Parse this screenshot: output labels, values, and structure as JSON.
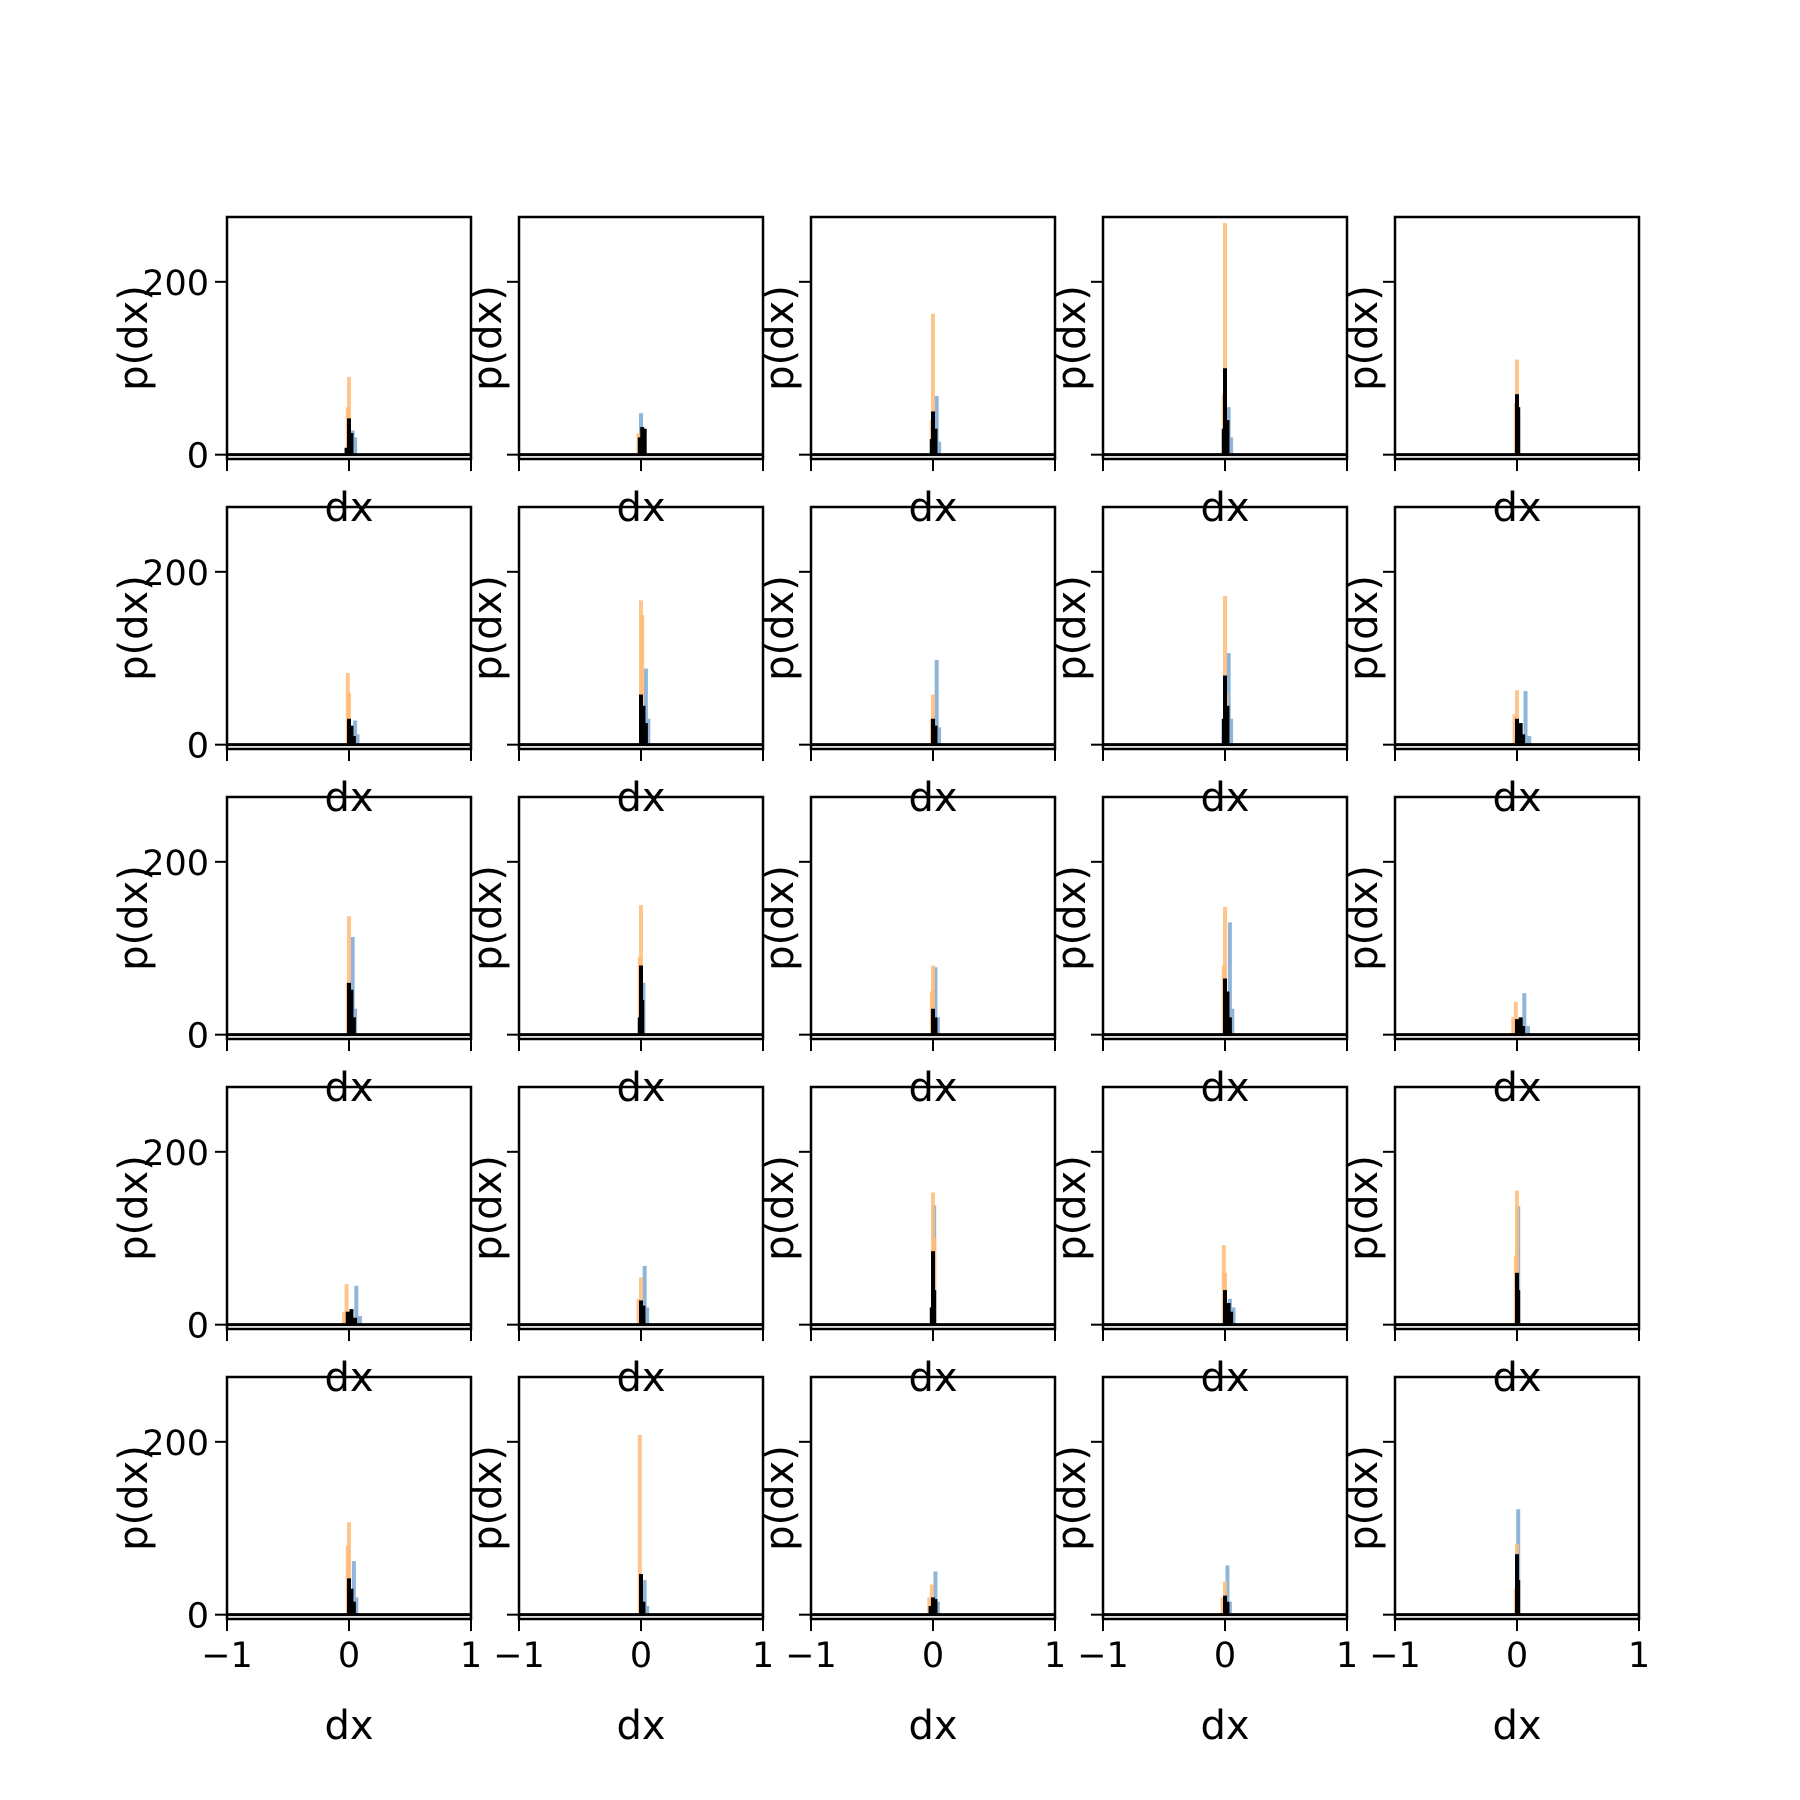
{
  "colors": {
    "orange": "#ffbb78",
    "blue": "#8fb5d8",
    "black": "#000000"
  },
  "chart_data": {
    "type": "bar",
    "layout": "grid 5x5, shared axes",
    "xlabel": "dx",
    "ylabel": "p(dx)",
    "xlim": [
      -1,
      1
    ],
    "ylim": [
      -5,
      275
    ],
    "xticks": [
      -1,
      0,
      1
    ],
    "xtick_labels": [
      "−1",
      "0",
      "1"
    ],
    "yticks": [
      0,
      200
    ],
    "ytick_labels": [
      "0",
      "200"
    ],
    "series_colors": [
      "orange",
      "blue",
      "black"
    ],
    "panels": [
      {
        "orange": [
          [
            0.0,
            90
          ],
          [
            -0.01,
            55
          ]
        ],
        "blue": [
          [
            0.03,
            28
          ],
          [
            0.05,
            20
          ]
        ],
        "black": [
          [
            0.0,
            42
          ],
          [
            0.02,
            25
          ],
          [
            -0.02,
            8
          ]
        ]
      },
      {
        "orange": [
          [
            -0.02,
            25
          ],
          [
            0.0,
            15
          ]
        ],
        "blue": [
          [
            0.0,
            48
          ],
          [
            0.03,
            30
          ]
        ],
        "black": [
          [
            -0.01,
            20
          ],
          [
            0.01,
            32
          ],
          [
            0.03,
            30
          ]
        ]
      },
      {
        "orange": [
          [
            0.0,
            163
          ],
          [
            -0.01,
            40
          ]
        ],
        "blue": [
          [
            0.03,
            68
          ],
          [
            0.05,
            15
          ]
        ],
        "black": [
          [
            0.0,
            50
          ],
          [
            0.02,
            30
          ],
          [
            -0.01,
            18
          ]
        ]
      },
      {
        "orange": [
          [
            0.0,
            268
          ],
          [
            -0.01,
            70
          ]
        ],
        "blue": [
          [
            0.03,
            55
          ],
          [
            0.05,
            20
          ]
        ],
        "black": [
          [
            0.0,
            100
          ],
          [
            0.02,
            40
          ],
          [
            -0.01,
            30
          ]
        ]
      },
      {
        "orange": [
          [
            0.0,
            110
          ],
          [
            -0.01,
            60
          ]
        ],
        "blue": [
          [
            0.01,
            48
          ]
        ],
        "black": [
          [
            0.0,
            70
          ],
          [
            0.01,
            55
          ]
        ]
      },
      {
        "orange": [
          [
            -0.01,
            83
          ],
          [
            0.0,
            60
          ]
        ],
        "blue": [
          [
            0.05,
            28
          ],
          [
            0.07,
            12
          ]
        ],
        "black": [
          [
            0.0,
            30
          ],
          [
            0.02,
            22
          ],
          [
            0.04,
            10
          ]
        ]
      },
      {
        "orange": [
          [
            0.0,
            167
          ],
          [
            0.01,
            150
          ]
        ],
        "blue": [
          [
            0.04,
            88
          ],
          [
            0.06,
            30
          ]
        ],
        "black": [
          [
            0.0,
            58
          ],
          [
            0.02,
            45
          ],
          [
            0.04,
            25
          ]
        ]
      },
      {
        "orange": [
          [
            0.0,
            58
          ],
          [
            -0.01,
            30
          ]
        ],
        "blue": [
          [
            0.03,
            98
          ],
          [
            0.05,
            20
          ]
        ],
        "black": [
          [
            0.0,
            30
          ],
          [
            0.02,
            22
          ]
        ]
      },
      {
        "orange": [
          [
            0.0,
            172
          ],
          [
            0.01,
            60
          ]
        ],
        "blue": [
          [
            0.03,
            106
          ],
          [
            0.05,
            30
          ]
        ],
        "black": [
          [
            0.0,
            80
          ],
          [
            0.02,
            45
          ],
          [
            -0.01,
            30
          ]
        ]
      },
      {
        "orange": [
          [
            0.0,
            63
          ],
          [
            -0.02,
            35
          ]
        ],
        "blue": [
          [
            0.07,
            62
          ],
          [
            0.1,
            10
          ]
        ],
        "black": [
          [
            0.0,
            30
          ],
          [
            0.03,
            25
          ],
          [
            0.05,
            12
          ]
        ]
      },
      {
        "orange": [
          [
            0.0,
            137
          ],
          [
            -0.01,
            60
          ]
        ],
        "blue": [
          [
            0.03,
            113
          ],
          [
            0.05,
            30
          ]
        ],
        "black": [
          [
            0.0,
            60
          ],
          [
            0.02,
            52
          ],
          [
            0.04,
            20
          ]
        ]
      },
      {
        "orange": [
          [
            0.0,
            150
          ],
          [
            -0.01,
            90
          ]
        ],
        "blue": [
          [
            0.02,
            60
          ]
        ],
        "black": [
          [
            0.0,
            80
          ],
          [
            0.01,
            40
          ],
          [
            -0.01,
            20
          ]
        ]
      },
      {
        "orange": [
          [
            0.0,
            80
          ],
          [
            -0.01,
            50
          ]
        ],
        "blue": [
          [
            0.02,
            78
          ],
          [
            0.04,
            20
          ]
        ],
        "black": [
          [
            0.0,
            30
          ],
          [
            0.02,
            20
          ]
        ]
      },
      {
        "orange": [
          [
            0.0,
            148
          ],
          [
            -0.01,
            80
          ]
        ],
        "blue": [
          [
            0.04,
            130
          ],
          [
            0.06,
            30
          ]
        ],
        "black": [
          [
            0.0,
            65
          ],
          [
            0.02,
            50
          ],
          [
            0.04,
            20
          ]
        ]
      },
      {
        "orange": [
          [
            -0.01,
            38
          ],
          [
            -0.03,
            20
          ]
        ],
        "blue": [
          [
            0.06,
            48
          ],
          [
            0.09,
            10
          ]
        ],
        "black": [
          [
            0.0,
            18
          ],
          [
            0.03,
            20
          ],
          [
            0.05,
            10
          ]
        ]
      },
      {
        "orange": [
          [
            -0.02,
            47
          ],
          [
            -0.04,
            15
          ]
        ],
        "blue": [
          [
            0.06,
            45
          ],
          [
            0.09,
            10
          ]
        ],
        "black": [
          [
            -0.01,
            15
          ],
          [
            0.02,
            18
          ],
          [
            0.05,
            8
          ]
        ]
      },
      {
        "orange": [
          [
            0.0,
            55
          ],
          [
            -0.02,
            30
          ]
        ],
        "blue": [
          [
            0.03,
            68
          ],
          [
            0.05,
            20
          ]
        ],
        "black": [
          [
            0.0,
            28
          ],
          [
            0.02,
            22
          ]
        ]
      },
      {
        "orange": [
          [
            0.0,
            153
          ],
          [
            0.01,
            100
          ]
        ],
        "blue": [
          [
            0.01,
            138
          ]
        ],
        "black": [
          [
            0.0,
            85
          ],
          [
            0.01,
            40
          ],
          [
            -0.01,
            20
          ]
        ]
      },
      {
        "orange": [
          [
            -0.01,
            92
          ],
          [
            0.0,
            60
          ]
        ],
        "blue": [
          [
            0.04,
            30
          ],
          [
            0.07,
            20
          ]
        ],
        "black": [
          [
            0.0,
            40
          ],
          [
            0.03,
            25
          ],
          [
            0.05,
            15
          ]
        ]
      },
      {
        "orange": [
          [
            0.0,
            155
          ],
          [
            -0.01,
            80
          ]
        ],
        "blue": [
          [
            0.01,
            137
          ]
        ],
        "black": [
          [
            0.0,
            60
          ],
          [
            0.01,
            40
          ]
        ]
      },
      {
        "orange": [
          [
            0.0,
            107
          ],
          [
            -0.01,
            80
          ]
        ],
        "blue": [
          [
            0.04,
            62
          ],
          [
            0.06,
            20
          ]
        ],
        "black": [
          [
            0.0,
            42
          ],
          [
            0.02,
            30
          ],
          [
            0.04,
            15
          ]
        ]
      },
      {
        "orange": [
          [
            -0.01,
            208
          ],
          [
            0.0,
            40
          ]
        ],
        "blue": [
          [
            0.03,
            40
          ],
          [
            0.05,
            10
          ]
        ],
        "black": [
          [
            0.0,
            47
          ],
          [
            0.02,
            15
          ]
        ]
      },
      {
        "orange": [
          [
            -0.01,
            35
          ],
          [
            -0.03,
            20
          ]
        ],
        "blue": [
          [
            0.02,
            50
          ],
          [
            0.04,
            15
          ]
        ],
        "black": [
          [
            0.0,
            20
          ],
          [
            0.02,
            18
          ],
          [
            -0.02,
            10
          ]
        ]
      },
      {
        "orange": [
          [
            0.0,
            38
          ],
          [
            -0.02,
            20
          ]
        ],
        "blue": [
          [
            0.02,
            57
          ],
          [
            0.04,
            15
          ]
        ],
        "black": [
          [
            0.0,
            22
          ],
          [
            0.02,
            15
          ]
        ]
      },
      {
        "orange": [
          [
            0.0,
            82
          ],
          [
            -0.01,
            30
          ]
        ],
        "blue": [
          [
            0.01,
            122
          ]
        ],
        "black": [
          [
            0.0,
            70
          ],
          [
            0.01,
            40
          ]
        ]
      }
    ]
  }
}
